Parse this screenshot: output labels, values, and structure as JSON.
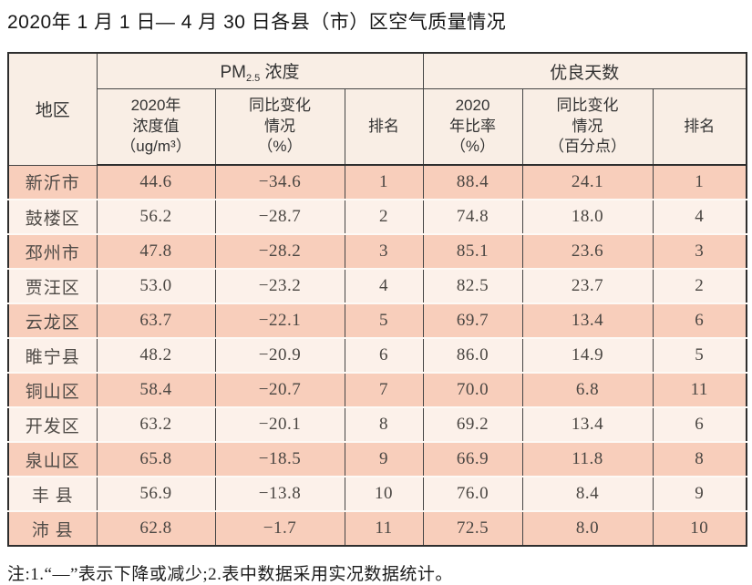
{
  "page": {
    "title": "2020年 1 月 1 日— 4 月 30 日各县（市）区空气质量情况",
    "footnote": "注:1.“—”表示下降或减少;2.表中数据采用实况数据统计。"
  },
  "colors": {
    "row_dark": "#f8cebb",
    "row_light": "#fcf1ea",
    "header_bg": "#f9eee5",
    "border": "#2e2e2e",
    "text": "#333333"
  },
  "table": {
    "header": {
      "region": "地区",
      "pm25": {
        "prefix": "PM",
        "subscript": "2.5",
        "suffix": " 浓度"
      },
      "good_days": "优良天数",
      "sub": {
        "pm_value": "2020年\n浓度值\n（ug/m³）",
        "pm_change": "同比变化\n情况\n（%）",
        "pm_rank": "排名",
        "gd_ratio": "2020\n年比率\n（%）",
        "gd_change": "同比变化\n情况\n（百分点）",
        "gd_rank": "排名"
      }
    },
    "rows": [
      {
        "region": "新沂市",
        "pm_value": "44.6",
        "pm_change": "−34.6",
        "pm_rank": "1",
        "gd_ratio": "88.4",
        "gd_change": "24.1",
        "gd_rank": "1"
      },
      {
        "region": "鼓楼区",
        "pm_value": "56.2",
        "pm_change": "−28.7",
        "pm_rank": "2",
        "gd_ratio": "74.8",
        "gd_change": "18.0",
        "gd_rank": "4"
      },
      {
        "region": "邳州市",
        "pm_value": "47.8",
        "pm_change": "−28.2",
        "pm_rank": "3",
        "gd_ratio": "85.1",
        "gd_change": "23.6",
        "gd_rank": "3"
      },
      {
        "region": "贾汪区",
        "pm_value": "53.0",
        "pm_change": "−23.2",
        "pm_rank": "4",
        "gd_ratio": "82.5",
        "gd_change": "23.7",
        "gd_rank": "2"
      },
      {
        "region": "云龙区",
        "pm_value": "63.7",
        "pm_change": "−22.1",
        "pm_rank": "5",
        "gd_ratio": "69.7",
        "gd_change": "13.4",
        "gd_rank": "6"
      },
      {
        "region": "睢宁县",
        "pm_value": "48.2",
        "pm_change": "−20.9",
        "pm_rank": "6",
        "gd_ratio": "86.0",
        "gd_change": "14.9",
        "gd_rank": "5"
      },
      {
        "region": "铜山区",
        "pm_value": "58.4",
        "pm_change": "−20.7",
        "pm_rank": "7",
        "gd_ratio": "70.0",
        "gd_change": "6.8",
        "gd_rank": "11"
      },
      {
        "region": "开发区",
        "pm_value": "63.2",
        "pm_change": "−20.1",
        "pm_rank": "8",
        "gd_ratio": "69.2",
        "gd_change": "13.4",
        "gd_rank": "6"
      },
      {
        "region": "泉山区",
        "pm_value": "65.8",
        "pm_change": "−18.5",
        "pm_rank": "9",
        "gd_ratio": "66.9",
        "gd_change": "11.8",
        "gd_rank": "8"
      },
      {
        "region": "丰 县",
        "pm_value": "56.9",
        "pm_change": "−13.8",
        "pm_rank": "10",
        "gd_ratio": "76.0",
        "gd_change": "8.4",
        "gd_rank": "9"
      },
      {
        "region": "沛 县",
        "pm_value": "62.8",
        "pm_change": "−1.7",
        "pm_rank": "11",
        "gd_ratio": "72.5",
        "gd_change": "8.0",
        "gd_rank": "10"
      }
    ]
  }
}
